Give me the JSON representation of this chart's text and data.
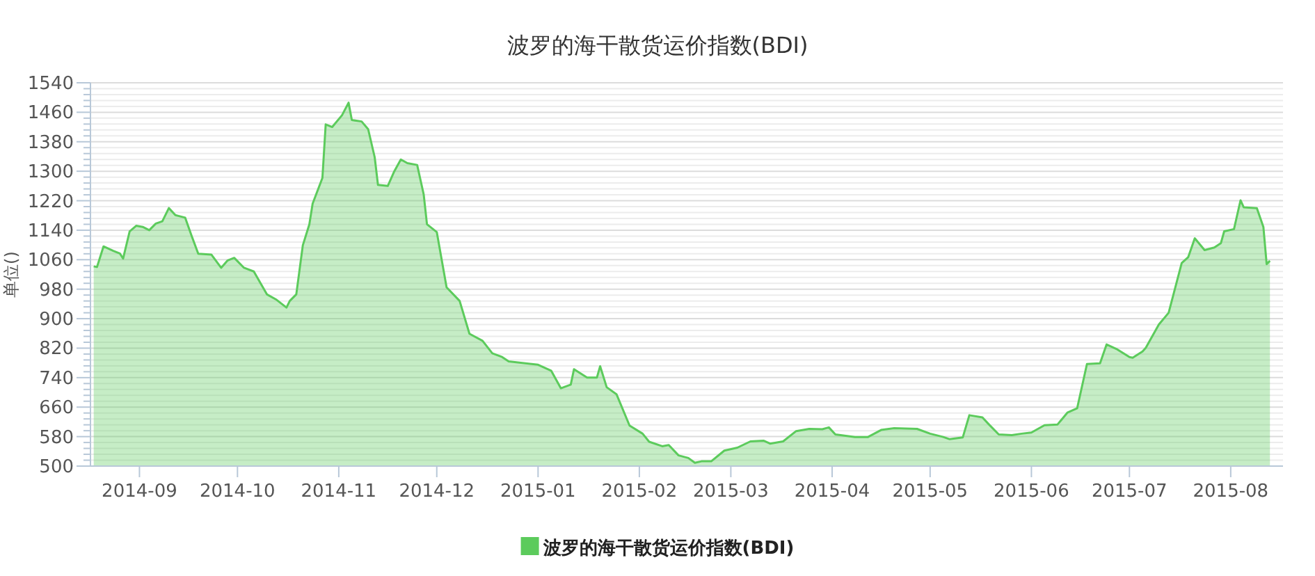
{
  "chart_data": {
    "type": "area",
    "title": "波罗的海干散货运价指数(BDI)",
    "ylabel": "单位()",
    "x": [
      "2014-08-18",
      "2014-08-19",
      "2014-08-21",
      "2014-08-24",
      "2014-08-26",
      "2014-08-27",
      "2014-08-29",
      "2014-08-31",
      "2014-09-02",
      "2014-09-04",
      "2014-09-06",
      "2014-09-08",
      "2014-09-10",
      "2014-09-12",
      "2014-09-15",
      "2014-09-17",
      "2014-09-19",
      "2014-09-23",
      "2014-09-26",
      "2014-09-28",
      "2014-09-30",
      "2014-10-03",
      "2014-10-06",
      "2014-10-10",
      "2014-10-13",
      "2014-10-16",
      "2014-10-17",
      "2014-10-19",
      "2014-10-21",
      "2014-10-23",
      "2014-10-24",
      "2014-10-27",
      "2014-10-28",
      "2014-10-30",
      "2014-11-02",
      "2014-11-04",
      "2014-11-05",
      "2014-11-08",
      "2014-11-10",
      "2014-11-12",
      "2014-11-13",
      "2014-11-16",
      "2014-11-18",
      "2014-11-20",
      "2014-11-22",
      "2014-11-25",
      "2014-11-27",
      "2014-11-28",
      "2014-12-01",
      "2014-12-04",
      "2014-12-08",
      "2014-12-11",
      "2014-12-15",
      "2014-12-18",
      "2014-12-21",
      "2014-12-23",
      "2015-01-01",
      "2015-01-05",
      "2015-01-08",
      "2015-01-11",
      "2015-01-12",
      "2015-01-16",
      "2015-01-19",
      "2015-01-20",
      "2015-01-22",
      "2015-01-25",
      "2015-01-29",
      "2015-02-02",
      "2015-02-04",
      "2015-02-08",
      "2015-02-10",
      "2015-02-13",
      "2015-02-16",
      "2015-02-18",
      "2015-02-20",
      "2015-02-23",
      "2015-02-27",
      "2015-03-03",
      "2015-03-07",
      "2015-03-11",
      "2015-03-13",
      "2015-03-17",
      "2015-03-21",
      "2015-03-25",
      "2015-03-29",
      "2015-03-31",
      "2015-04-02",
      "2015-04-08",
      "2015-04-12",
      "2015-04-16",
      "2015-04-20",
      "2015-04-27",
      "2015-05-01",
      "2015-05-05",
      "2015-05-07",
      "2015-05-11",
      "2015-05-13",
      "2015-05-17",
      "2015-05-19",
      "2015-05-22",
      "2015-05-26",
      "2015-05-29",
      "2015-06-01",
      "2015-06-05",
      "2015-06-09",
      "2015-06-12",
      "2015-06-15",
      "2015-06-18",
      "2015-06-22",
      "2015-06-24",
      "2015-06-27",
      "2015-07-01",
      "2015-07-02",
      "2015-07-05",
      "2015-07-06",
      "2015-07-10",
      "2015-07-13",
      "2015-07-17",
      "2015-07-19",
      "2015-07-21",
      "2015-07-24",
      "2015-07-27",
      "2015-07-29",
      "2015-07-30",
      "2015-08-02",
      "2015-08-04",
      "2015-08-05",
      "2015-08-09",
      "2015-08-11",
      "2015-08-12",
      "2015-08-13"
    ],
    "series": [
      {
        "name": "波罗的海干散货运价指数(BDI)",
        "color": "#5ccb5c",
        "values": [
          1042,
          1040,
          1096,
          1084,
          1077,
          1063,
          1137,
          1152,
          1149,
          1140,
          1158,
          1164,
          1200,
          1181,
          1174,
          1124,
          1076,
          1074,
          1038,
          1058,
          1065,
          1038,
          1028,
          966,
          951,
          930,
          948,
          966,
          1099,
          1156,
          1212,
          1282,
          1427,
          1420,
          1452,
          1486,
          1439,
          1435,
          1414,
          1338,
          1263,
          1260,
          1300,
          1332,
          1322,
          1317,
          1237,
          1156,
          1135,
          985,
          948,
          859,
          840,
          806,
          796,
          784,
          775,
          759,
          711,
          721,
          763,
          740,
          740,
          771,
          714,
          695,
          610,
          588,
          566,
          554,
          557,
          529,
          522,
          509,
          513,
          513,
          542,
          550,
          567,
          569,
          561,
          567,
          595,
          601,
          600,
          605,
          586,
          579,
          579,
          598,
          603,
          601,
          588,
          579,
          573,
          578,
          638,
          632,
          613,
          586,
          584,
          588,
          591,
          611,
          613,
          645,
          657,
          777,
          779,
          830,
          818,
          796,
          794,
          811,
          821,
          884,
          916,
          1051,
          1067,
          1118,
          1086,
          1093,
          1105,
          1137,
          1143,
          1221,
          1202,
          1200,
          1149,
          1048,
          1057
        ]
      }
    ],
    "xlim": [
      "2014-08-17",
      "2015-08-17"
    ],
    "xticks": [
      {
        "value": "2014-09-01",
        "label": "2014-09"
      },
      {
        "value": "2014-10-01",
        "label": "2014-10"
      },
      {
        "value": "2014-11-01",
        "label": "2014-11"
      },
      {
        "value": "2014-12-01",
        "label": "2014-12"
      },
      {
        "value": "2015-01-01",
        "label": "2015-01"
      },
      {
        "value": "2015-02-01",
        "label": "2015-02"
      },
      {
        "value": "2015-03-01",
        "label": "2015-03"
      },
      {
        "value": "2015-04-01",
        "label": "2015-04"
      },
      {
        "value": "2015-05-01",
        "label": "2015-05"
      },
      {
        "value": "2015-06-01",
        "label": "2015-06"
      },
      {
        "value": "2015-07-01",
        "label": "2015-07"
      },
      {
        "value": "2015-08-01",
        "label": "2015-08"
      }
    ],
    "ylim": [
      500,
      1540
    ],
    "yticks": [
      500,
      580,
      660,
      740,
      820,
      900,
      980,
      1060,
      1140,
      1220,
      1300,
      1380,
      1460,
      1540
    ],
    "grid": "y",
    "legend": "bottom"
  }
}
